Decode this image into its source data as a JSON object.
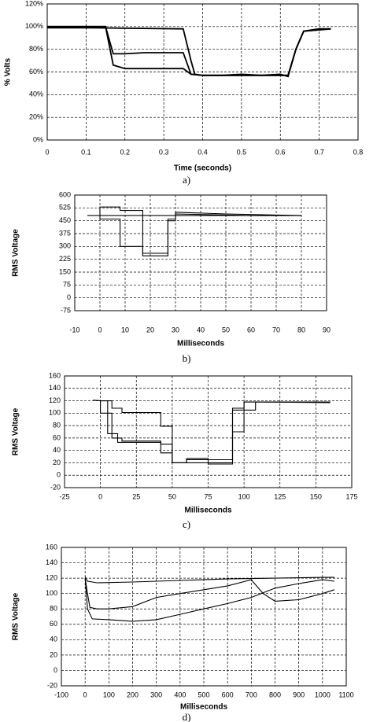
{
  "chart_data": [
    {
      "type": "line",
      "caption": "a)",
      "y_label": "% Volts",
      "x_label": "Time (seconds)",
      "grid": true,
      "xlim": [
        0,
        0.8
      ],
      "xticks": [
        0,
        0.1,
        0.2,
        0.3,
        0.4,
        0.5,
        0.6,
        0.7,
        0.8
      ],
      "ylim": [
        0,
        120
      ],
      "yticks": [
        {
          "value": 0,
          "label": "0%"
        },
        {
          "value": 20,
          "label": "20%"
        },
        {
          "value": 40,
          "label": "40%"
        },
        {
          "value": 60,
          "label": "60%"
        },
        {
          "value": 80,
          "label": "80%"
        },
        {
          "value": 100,
          "label": "100%"
        },
        {
          "value": 120,
          "label": "120%"
        }
      ],
      "series": [
        {
          "color": "#000000",
          "x": [
            0,
            0.15,
            0.17,
            0.2,
            0.35,
            0.37,
            0.4,
            0.5,
            0.6,
            0.62,
            0.64,
            0.66,
            0.7,
            0.73
          ],
          "values": [
            100,
            100,
            66,
            63,
            63,
            58,
            57,
            57,
            57,
            57,
            80,
            96,
            98,
            98
          ]
        },
        {
          "color": "#000000",
          "x": [
            0,
            0.15,
            0.17,
            0.2,
            0.25,
            0.35,
            0.37,
            0.4,
            0.5,
            0.6,
            0.62,
            0.64,
            0.66,
            0.73
          ],
          "values": [
            100,
            100,
            76,
            76,
            77,
            77,
            58,
            57,
            57,
            57,
            57,
            80,
            96,
            98
          ]
        },
        {
          "color": "#000000",
          "x": [
            0,
            0.1,
            0.35,
            0.37,
            0.38,
            0.4,
            0.45,
            0.5,
            0.55,
            0.6,
            0.62,
            0.64,
            0.66,
            0.73
          ],
          "values": [
            99,
            99,
            98,
            70,
            58,
            57,
            57,
            58,
            57,
            58,
            56,
            80,
            96,
            98
          ]
        }
      ]
    },
    {
      "type": "line",
      "caption": "b)",
      "y_label": "RMS Voltage",
      "x_label": "Milliseconds",
      "grid": true,
      "xlim": [
        -10,
        90
      ],
      "xticks": [
        -10,
        0,
        10,
        20,
        30,
        40,
        50,
        60,
        70,
        80,
        90
      ],
      "ylim": [
        -75,
        600
      ],
      "yticks": [
        -75,
        0,
        75,
        150,
        225,
        300,
        375,
        450,
        525,
        600
      ],
      "series": [
        {
          "color": "#000000",
          "x": [
            -5,
            0,
            80
          ],
          "values": [
            480,
            480,
            480
          ]
        },
        {
          "color": "#000000",
          "x": [
            0,
            0,
            8,
            8,
            17,
            17,
            27,
            27,
            30,
            30,
            50,
            80
          ],
          "values": [
            480,
            530,
            530,
            510,
            510,
            260,
            260,
            460,
            460,
            500,
            490,
            480
          ]
        },
        {
          "color": "#000000",
          "x": [
            0,
            0,
            8,
            8,
            17,
            17,
            27,
            27,
            30,
            30,
            60,
            80
          ],
          "values": [
            480,
            460,
            460,
            300,
            300,
            245,
            245,
            450,
            450,
            490,
            480,
            480
          ]
        }
      ]
    },
    {
      "type": "line",
      "caption": "c)",
      "y_label": "RMS Voltage",
      "x_label": "Milliseconds",
      "grid": true,
      "xlim": [
        -25,
        175
      ],
      "xticks": [
        -25,
        0,
        25,
        50,
        75,
        100,
        125,
        150,
        175
      ],
      "ylim": [
        -20,
        160
      ],
      "yticks": [
        -20,
        0,
        20,
        40,
        60,
        80,
        100,
        120,
        140,
        160
      ],
      "series": [
        {
          "color": "#000000",
          "x": [
            -5,
            0,
            8,
            8,
            15,
            15,
            42,
            42,
            50,
            50,
            60,
            60,
            75,
            75,
            92,
            92,
            100,
            100,
            160
          ],
          "values": [
            121,
            120,
            120,
            108,
            108,
            101,
            101,
            79,
            79,
            20,
            20,
            25,
            25,
            25,
            25,
            70,
            70,
            118,
            118
          ]
        },
        {
          "color": "#000000",
          "x": [
            -5,
            0,
            0,
            8,
            8,
            15,
            15,
            42,
            42,
            50,
            50,
            92,
            92,
            108,
            108,
            160
          ],
          "values": [
            121,
            120,
            100,
            100,
            60,
            60,
            55,
            55,
            50,
            50,
            20,
            20,
            105,
            105,
            118,
            118
          ]
        },
        {
          "color": "#000000",
          "x": [
            0,
            5,
            5,
            12,
            12,
            42,
            42,
            50,
            50,
            60,
            60,
            75,
            75,
            92,
            92,
            100,
            100,
            110,
            160
          ],
          "values": [
            120,
            120,
            67,
            67,
            53,
            53,
            36,
            36,
            20,
            20,
            27,
            27,
            18,
            18,
            108,
            108,
            118,
            118,
            117
          ]
        }
      ]
    },
    {
      "type": "line",
      "caption": "d)",
      "y_label": "RMS Voltage",
      "x_label": "Milliseconds",
      "grid": true,
      "xlim": [
        -100,
        1100
      ],
      "xticks": [
        -100,
        0,
        100,
        200,
        300,
        400,
        500,
        600,
        700,
        800,
        900,
        1000,
        1100
      ],
      "ylim": [
        -20,
        160
      ],
      "yticks": [
        -20,
        0,
        20,
        40,
        60,
        80,
        100,
        120,
        140,
        160
      ],
      "series": [
        {
          "color": "#000000",
          "x": [
            0,
            10,
            50,
            200,
            400,
            600,
            800,
            1000,
            1050
          ],
          "values": [
            122,
            116,
            114,
            115,
            117,
            119,
            120,
            121,
            121
          ]
        },
        {
          "color": "#000000",
          "x": [
            0,
            10,
            20,
            50,
            100,
            200,
            300,
            400,
            500,
            600,
            700,
            750,
            800,
            900,
            1000,
            1050
          ],
          "values": [
            120,
            100,
            82,
            80,
            80,
            83,
            95,
            100,
            105,
            110,
            118,
            100,
            90,
            92,
            100,
            105
          ]
        },
        {
          "color": "#000000",
          "x": [
            0,
            10,
            30,
            100,
            200,
            300,
            400,
            500,
            600,
            700,
            800,
            900,
            1000,
            1050
          ],
          "values": [
            120,
            80,
            67,
            66,
            64,
            66,
            73,
            80,
            87,
            95,
            107,
            113,
            118,
            116
          ]
        }
      ]
    }
  ]
}
